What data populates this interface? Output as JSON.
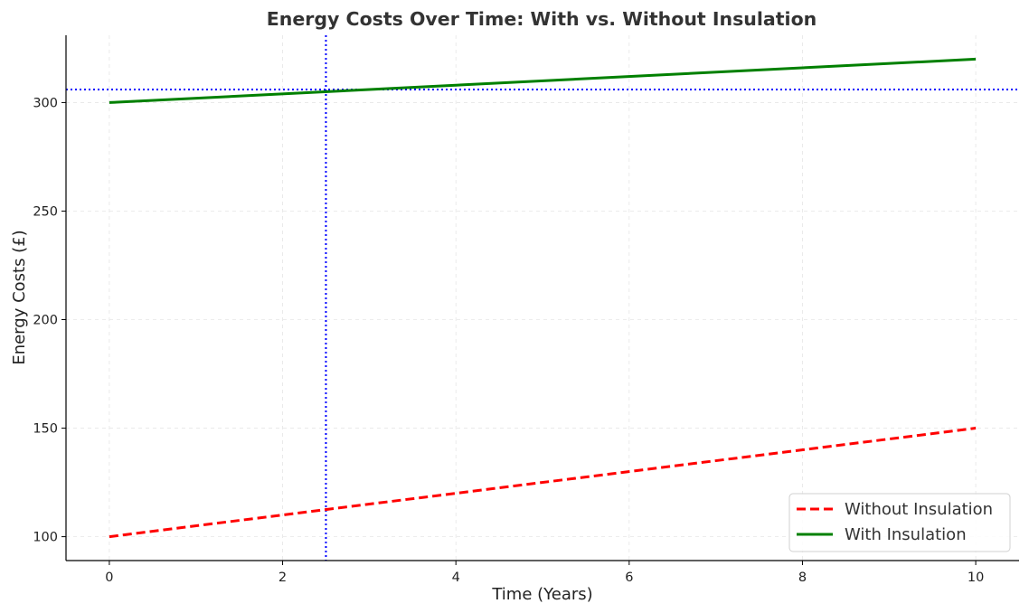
{
  "chart_data": {
    "type": "line",
    "title": "Energy Costs Over Time: With vs. Without Insulation",
    "xlabel": "Time (Years)",
    "ylabel": "Energy Costs (£)",
    "xlim": [
      -0.5,
      10.5
    ],
    "ylim": [
      89,
      331
    ],
    "xticks": [
      0,
      2,
      4,
      6,
      8,
      10
    ],
    "yticks": [
      100,
      150,
      200,
      250,
      300
    ],
    "grid": true,
    "legend_position": "bottom-right",
    "series": [
      {
        "name": "Without Insulation",
        "color": "#ff0000",
        "style": "dashed",
        "x": [
          0,
          10
        ],
        "y": [
          100,
          150
        ]
      },
      {
        "name": "With Insulation",
        "color": "#008000",
        "style": "solid",
        "x": [
          0,
          10
        ],
        "y": [
          300,
          320
        ]
      }
    ],
    "reference_lines": [
      {
        "orientation": "vertical",
        "x": 2.5,
        "color": "#0000ff",
        "style": "dotted"
      },
      {
        "orientation": "horizontal",
        "y": 306,
        "color": "#0000ff",
        "style": "dotted"
      }
    ]
  }
}
